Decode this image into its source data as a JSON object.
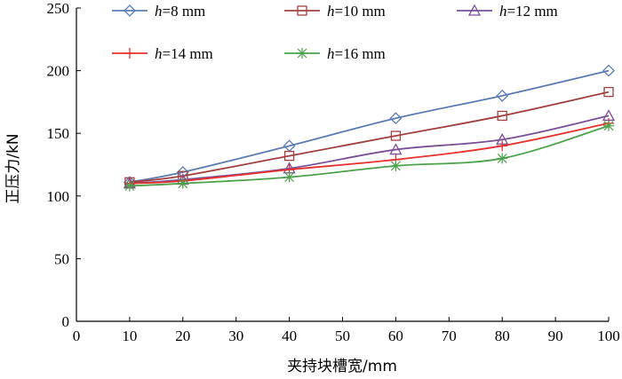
{
  "chart_data": {
    "type": "line",
    "title": "",
    "xlabel": "夹持块槽宽/mm",
    "ylabel": "正压力/kN",
    "xlim": [
      0,
      100
    ],
    "ylim": [
      0,
      250
    ],
    "xticks": [
      "0",
      "10",
      "20",
      "30",
      "40",
      "50",
      "60",
      "70",
      "80",
      "90",
      "100"
    ],
    "yticks": [
      "0",
      "50",
      "100",
      "150",
      "200",
      "250"
    ],
    "grid": false,
    "legend_position": "top",
    "x": [
      10,
      20,
      40,
      60,
      80,
      100
    ],
    "series": [
      {
        "name": "h=8 mm",
        "var": "h",
        "rest": "=8 mm",
        "color": "#5b7bb7",
        "marker": "diamond",
        "values": [
          111,
          119,
          140,
          162,
          180,
          200
        ]
      },
      {
        "name": "h=10 mm",
        "var": "h",
        "rest": "=10 mm",
        "color": "#a2403f",
        "marker": "square",
        "values": [
          111,
          116,
          132,
          148,
          164,
          183
        ]
      },
      {
        "name": "h=12 mm",
        "var": "h",
        "rest": "=12 mm",
        "color": "#7a4f98",
        "marker": "triangle",
        "values": [
          110,
          113,
          122,
          137,
          145,
          164
        ]
      },
      {
        "name": "h=14 mm",
        "var": "h",
        "rest": "=14 mm",
        "color": "#e8302c",
        "marker": "plus",
        "values": [
          110,
          112,
          121,
          129,
          140,
          158
        ]
      },
      {
        "name": "h=16 mm",
        "var": "h",
        "rest": "=16 mm",
        "color": "#4aa24a",
        "marker": "star",
        "values": [
          108,
          110,
          115,
          124,
          130,
          156
        ]
      }
    ]
  }
}
